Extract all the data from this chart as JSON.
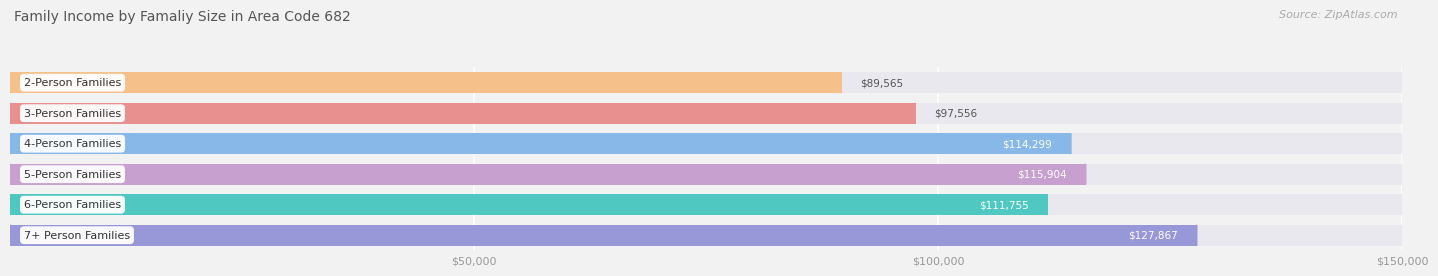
{
  "title": "Family Income by Famaliy Size in Area Code 682",
  "source": "Source: ZipAtlas.com",
  "categories": [
    "2-Person Families",
    "3-Person Families",
    "4-Person Families",
    "5-Person Families",
    "6-Person Families",
    "7+ Person Families"
  ],
  "values": [
    89565,
    97556,
    114299,
    115904,
    111755,
    127867
  ],
  "labels": [
    "$89,565",
    "$97,556",
    "$114,299",
    "$115,904",
    "$111,755",
    "$127,867"
  ],
  "bar_colors": [
    "#f5c08a",
    "#e89090",
    "#88b8e8",
    "#c8a0d0",
    "#4ec8c0",
    "#9898d8"
  ],
  "label_inside": [
    false,
    false,
    true,
    true,
    true,
    true
  ],
  "xlim_data": [
    0,
    150000
  ],
  "xticks": [
    50000,
    100000,
    150000
  ],
  "xticklabels": [
    "$50,000",
    "$100,000",
    "$150,000"
  ],
  "background_color": "#f2f2f2",
  "bar_bg_color": "#e8e8ee",
  "title_fontsize": 10,
  "source_fontsize": 8,
  "label_fontsize": 7.5,
  "category_fontsize": 8
}
